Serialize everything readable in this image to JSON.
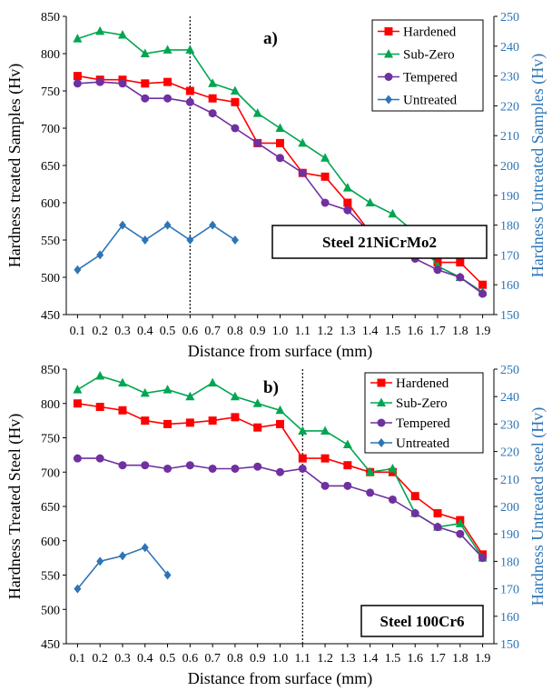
{
  "colors": {
    "hardened": "#ff0000",
    "subzero": "#00a650",
    "tempered": "#7030a0",
    "untreated": "#2e75b6",
    "right_axis": "#2e75b6"
  },
  "chart_data": [
    {
      "type": "line",
      "panel_label": "a)",
      "box_label": "Steel 21NiCrMo2",
      "xlabel": "Distance from surface (mm)",
      "ylabel": "Hardness treated Samples (Hv)",
      "y2label": "Hardness Untreated Samples (Hv)",
      "x_ticks": [
        "0.1",
        "0.2",
        "0.3",
        "0.4",
        "0.5",
        "0.6",
        "0.7",
        "0.8",
        "0.9",
        "1.0",
        "1.1",
        "1.2",
        "1.3",
        "1.4",
        "1.5",
        "1.6",
        "1.7",
        "1.8",
        "1.9"
      ],
      "xlim": [
        0.05,
        1.95
      ],
      "ylim": [
        450,
        850
      ],
      "y_ticks": [
        450,
        500,
        550,
        600,
        650,
        700,
        750,
        800,
        850
      ],
      "y2lim": [
        150,
        250
      ],
      "y2_ticks": [
        150,
        160,
        170,
        180,
        190,
        200,
        210,
        220,
        230,
        240,
        250
      ],
      "vline_x": 0.6,
      "legend_position": "top-right",
      "series": [
        {
          "name": "Hardened",
          "axis": "left",
          "marker": "square",
          "color_key": "hardened",
          "x": [
            0.1,
            0.2,
            0.3,
            0.4,
            0.5,
            0.6,
            0.7,
            0.8,
            0.9,
            1.0,
            1.1,
            1.2,
            1.3,
            1.4,
            1.5,
            1.6,
            1.7,
            1.8,
            1.9
          ],
          "y": [
            770,
            765,
            765,
            760,
            762,
            750,
            740,
            735,
            680,
            680,
            640,
            635,
            600,
            560,
            555,
            540,
            520,
            520,
            490
          ]
        },
        {
          "name": "Sub-Zero",
          "axis": "left",
          "marker": "triangle",
          "color_key": "subzero",
          "x": [
            0.1,
            0.2,
            0.3,
            0.4,
            0.5,
            0.6,
            0.7,
            0.8,
            0.9,
            1.0,
            1.1,
            1.2,
            1.3,
            1.4,
            1.5,
            1.6,
            1.7,
            1.8,
            1.9
          ],
          "y": [
            820,
            830,
            825,
            800,
            805,
            805,
            760,
            750,
            720,
            700,
            680,
            660,
            620,
            600,
            585,
            560,
            515,
            500,
            480
          ]
        },
        {
          "name": "Tempered",
          "axis": "left",
          "marker": "circle",
          "color_key": "tempered",
          "x": [
            0.1,
            0.2,
            0.3,
            0.4,
            0.5,
            0.6,
            0.7,
            0.8,
            0.9,
            1.0,
            1.1,
            1.2,
            1.3,
            1.4,
            1.5,
            1.6,
            1.7,
            1.8,
            1.9
          ],
          "y": [
            760,
            762,
            760,
            740,
            740,
            735,
            720,
            700,
            680,
            660,
            640,
            600,
            590,
            560,
            540,
            525,
            510,
            500,
            478
          ]
        },
        {
          "name": "Untreated",
          "axis": "right",
          "marker": "diamond",
          "color_key": "untreated",
          "x": [
            0.1,
            0.2,
            0.3,
            0.4,
            0.5,
            0.6,
            0.7,
            0.8
          ],
          "y": [
            165,
            170,
            180,
            175,
            180,
            175,
            180,
            175
          ]
        }
      ]
    },
    {
      "type": "line",
      "panel_label": "b)",
      "box_label": "Steel 100Cr6",
      "xlabel": "Distance from surface (mm)",
      "ylabel": "Hardness Treated Steel (Hv)",
      "y2label": "Hardness Untreated steel (Hv)",
      "x_ticks": [
        "0.1",
        "0.2",
        "0.3",
        "0.4",
        "0.5",
        "0.6",
        "0.7",
        "0.8",
        "0.9",
        "1.0",
        "1.1",
        "1.2",
        "1.3",
        "1.4",
        "1.5",
        "1.6",
        "1.7",
        "1.8",
        "1.9"
      ],
      "xlim": [
        0.05,
        1.95
      ],
      "ylim": [
        450,
        850
      ],
      "y_ticks": [
        450,
        500,
        550,
        600,
        650,
        700,
        750,
        800,
        850
      ],
      "y2lim": [
        150,
        250
      ],
      "y2_ticks": [
        150,
        160,
        170,
        180,
        190,
        200,
        210,
        220,
        230,
        240,
        250
      ],
      "vline_x": 1.1,
      "legend_position": "top-right",
      "series": [
        {
          "name": "Hardened",
          "axis": "left",
          "marker": "square",
          "color_key": "hardened",
          "x": [
            0.1,
            0.2,
            0.3,
            0.4,
            0.5,
            0.6,
            0.7,
            0.8,
            0.9,
            1.0,
            1.1,
            1.2,
            1.3,
            1.4,
            1.5,
            1.6,
            1.7,
            1.8,
            1.9
          ],
          "y": [
            800,
            795,
            790,
            775,
            770,
            772,
            775,
            780,
            765,
            770,
            720,
            720,
            710,
            700,
            700,
            665,
            640,
            630,
            580
          ]
        },
        {
          "name": "Sub-Zero",
          "axis": "left",
          "marker": "triangle",
          "color_key": "subzero",
          "x": [
            0.1,
            0.2,
            0.3,
            0.4,
            0.5,
            0.6,
            0.7,
            0.8,
            0.9,
            1.0,
            1.1,
            1.2,
            1.3,
            1.4,
            1.5,
            1.6,
            1.7,
            1.8,
            1.9
          ],
          "y": [
            820,
            840,
            830,
            815,
            820,
            810,
            830,
            810,
            800,
            790,
            760,
            760,
            740,
            700,
            705,
            640,
            620,
            625,
            575
          ]
        },
        {
          "name": "Tempered",
          "axis": "left",
          "marker": "circle",
          "color_key": "tempered",
          "x": [
            0.1,
            0.2,
            0.3,
            0.4,
            0.5,
            0.6,
            0.7,
            0.8,
            0.9,
            1.0,
            1.1,
            1.2,
            1.3,
            1.4,
            1.5,
            1.6,
            1.7,
            1.8,
            1.9
          ],
          "y": [
            720,
            720,
            710,
            710,
            705,
            710,
            705,
            705,
            708,
            700,
            705,
            680,
            680,
            670,
            660,
            640,
            620,
            610,
            575
          ]
        },
        {
          "name": "Untreated",
          "axis": "right",
          "marker": "diamond",
          "color_key": "untreated",
          "x": [
            0.1,
            0.2,
            0.3,
            0.4,
            0.5
          ],
          "y": [
            170,
            180,
            182,
            185,
            175
          ]
        }
      ]
    }
  ]
}
